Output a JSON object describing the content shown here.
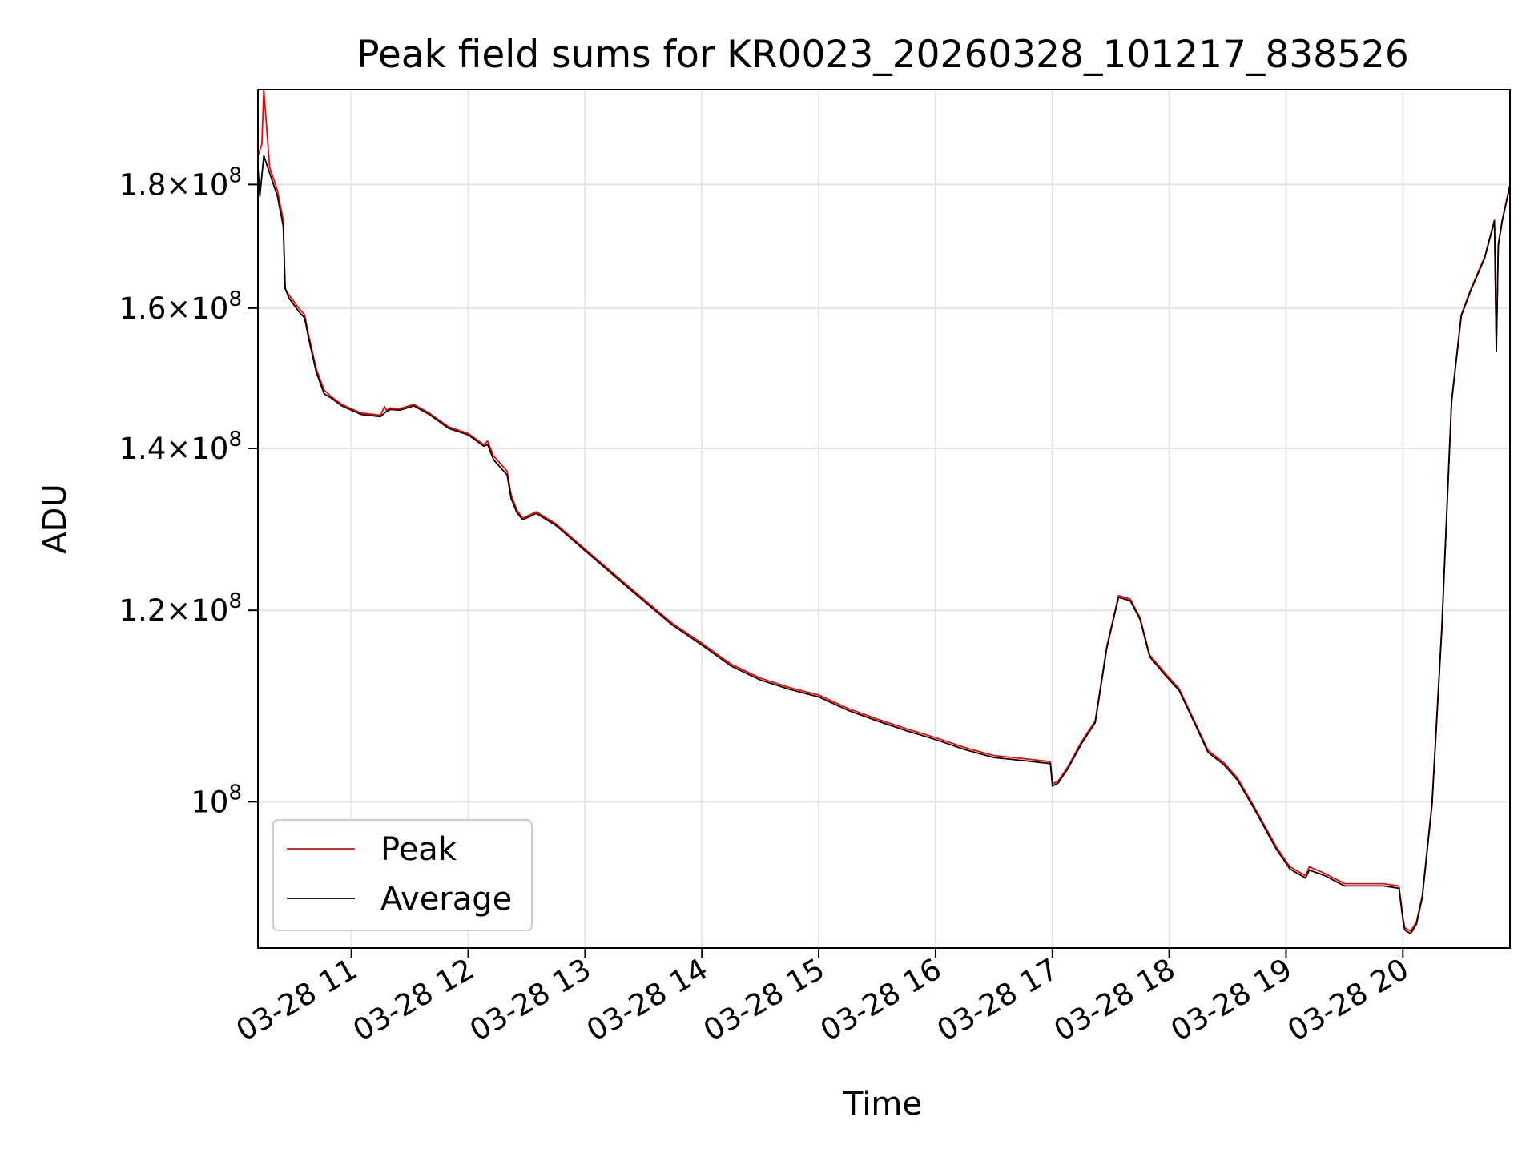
{
  "chart_data": {
    "type": "line",
    "title": "Peak field sums for KR0023_20260328_101217_838526",
    "xlabel": "Time",
    "ylabel": "ADU",
    "yscale": "log",
    "ylim": [
      87000000,
      197000000
    ],
    "xlim": [
      "2026-03-28 10:12",
      "2026-03-28 20:55"
    ],
    "grid": true,
    "legend": {
      "position": "lower left"
    },
    "x_ticks": [
      {
        "value": "2026-03-28 11:00",
        "label": "03-28 11"
      },
      {
        "value": "2026-03-28 12:00",
        "label": "03-28 12"
      },
      {
        "value": "2026-03-28 13:00",
        "label": "03-28 13"
      },
      {
        "value": "2026-03-28 14:00",
        "label": "03-28 14"
      },
      {
        "value": "2026-03-28 15:00",
        "label": "03-28 15"
      },
      {
        "value": "2026-03-28 16:00",
        "label": "03-28 16"
      },
      {
        "value": "2026-03-28 17:00",
        "label": "03-28 17"
      },
      {
        "value": "2026-03-28 18:00",
        "label": "03-28 18"
      },
      {
        "value": "2026-03-28 19:00",
        "label": "03-28 19"
      },
      {
        "value": "2026-03-28 20:00",
        "label": "03-28 20"
      }
    ],
    "y_ticks": [
      {
        "value": 100000000,
        "mantissa": "",
        "exponent": "8"
      },
      {
        "value": 120000000,
        "mantissa": "1.2",
        "exponent": "8"
      },
      {
        "value": 140000000,
        "mantissa": "1.4",
        "exponent": "8"
      },
      {
        "value": 160000000,
        "mantissa": "1.6",
        "exponent": "8"
      },
      {
        "value": 180000000,
        "mantissa": "1.8",
        "exponent": "8"
      }
    ],
    "tick_base": "10",
    "tick_times": "×",
    "series": [
      {
        "name": "Peak",
        "color": "#ff0000",
        "x": [
          "2026-03-28 10:12",
          "2026-03-28 10:14",
          "2026-03-28 10:15",
          "2026-03-28 10:18",
          "2026-03-28 10:22",
          "2026-03-28 10:25",
          "2026-03-28 10:26",
          "2026-03-28 10:28",
          "2026-03-28 10:33",
          "2026-03-28 10:36",
          "2026-03-28 10:38",
          "2026-03-28 10:42",
          "2026-03-28 10:46",
          "2026-03-28 10:50",
          "2026-03-28 10:55",
          "2026-03-28 11:05",
          "2026-03-28 11:15",
          "2026-03-28 11:17",
          "2026-03-28 11:18",
          "2026-03-28 11:20",
          "2026-03-28 11:25",
          "2026-03-28 11:32",
          "2026-03-28 11:40",
          "2026-03-28 11:50",
          "2026-03-28 12:00",
          "2026-03-28 12:08",
          "2026-03-28 12:10",
          "2026-03-28 12:13",
          "2026-03-28 12:20",
          "2026-03-28 12:22",
          "2026-03-28 12:25",
          "2026-03-28 12:28",
          "2026-03-28 12:35",
          "2026-03-28 12:45",
          "2026-03-28 13:00",
          "2026-03-28 13:15",
          "2026-03-28 13:30",
          "2026-03-28 13:45",
          "2026-03-28 14:00",
          "2026-03-28 14:15",
          "2026-03-28 14:30",
          "2026-03-28 14:45",
          "2026-03-28 15:00",
          "2026-03-28 15:15",
          "2026-03-28 15:30",
          "2026-03-28 15:45",
          "2026-03-28 16:00",
          "2026-03-28 16:15",
          "2026-03-28 16:30",
          "2026-03-28 16:45",
          "2026-03-28 16:59",
          "2026-03-28 17:00",
          "2026-03-28 17:03",
          "2026-03-28 17:08",
          "2026-03-28 17:15",
          "2026-03-28 17:22",
          "2026-03-28 17:28",
          "2026-03-28 17:34",
          "2026-03-28 17:40",
          "2026-03-28 17:45",
          "2026-03-28 17:50",
          "2026-03-28 17:58",
          "2026-03-28 18:05",
          "2026-03-28 18:12",
          "2026-03-28 18:20",
          "2026-03-28 18:28",
          "2026-03-28 18:35",
          "2026-03-28 18:45",
          "2026-03-28 18:55",
          "2026-03-28 19:02",
          "2026-03-28 19:10",
          "2026-03-28 19:12",
          "2026-03-28 19:20",
          "2026-03-28 19:30",
          "2026-03-28 19:40",
          "2026-03-28 19:50",
          "2026-03-28 19:58",
          "2026-03-28 20:00",
          "2026-03-28 20:01",
          "2026-03-28 20:04",
          "2026-03-28 20:07",
          "2026-03-28 20:10",
          "2026-03-28 20:15",
          "2026-03-28 20:20",
          "2026-03-28 20:25",
          "2026-03-28 20:30",
          "2026-03-28 20:35",
          "2026-03-28 20:42",
          "2026-03-28 20:47",
          "2026-03-28 20:48",
          "2026-03-28 20:49",
          "2026-03-28 20:51",
          "2026-03-28 20:55"
        ],
        "values": [
          185000000,
          187000000,
          197000000,
          183000000,
          179000000,
          174000000,
          163000000,
          162000000,
          160000000,
          159000000,
          156000000,
          151000000,
          148000000,
          147000000,
          146000000,
          144800000,
          144500000,
          145700000,
          145200000,
          145500000,
          145400000,
          146000000,
          144800000,
          142900000,
          142000000,
          140500000,
          141000000,
          139000000,
          137000000,
          134000000,
          132000000,
          131000000,
          131800000,
          130300000,
          127200000,
          124200000,
          121300000,
          118500000,
          116300000,
          114000000,
          112500000,
          111500000,
          110700000,
          109300000,
          108200000,
          107200000,
          106300000,
          105300000,
          104500000,
          104200000,
          103900000,
          101700000,
          102000000,
          103400000,
          105900000,
          108000000,
          116000000,
          121700000,
          121300000,
          119200000,
          115000000,
          113000000,
          111400000,
          108400000,
          105000000,
          103800000,
          102300000,
          99100000,
          95800000,
          94000000,
          93200000,
          94000000,
          93400000,
          92500000,
          92500000,
          92500000,
          92300000,
          89600000,
          88700000,
          88400000,
          89200000,
          91500000,
          100000000,
          118000000,
          146500000,
          159000000,
          163000000,
          168000000,
          174000000,
          155000000,
          170000000,
          174000000,
          180000000
        ]
      },
      {
        "name": "Average",
        "color": "#000000",
        "x": [
          "2026-03-28 10:12",
          "2026-03-28 10:13",
          "2026-03-28 10:15",
          "2026-03-28 10:18",
          "2026-03-28 10:22",
          "2026-03-28 10:25",
          "2026-03-28 10:26",
          "2026-03-28 10:28",
          "2026-03-28 10:33",
          "2026-03-28 10:36",
          "2026-03-28 10:38",
          "2026-03-28 10:42",
          "2026-03-28 10:46",
          "2026-03-28 10:50",
          "2026-03-28 10:55",
          "2026-03-28 11:05",
          "2026-03-28 11:15",
          "2026-03-28 11:17",
          "2026-03-28 11:18",
          "2026-03-28 11:20",
          "2026-03-28 11:25",
          "2026-03-28 11:32",
          "2026-03-28 11:40",
          "2026-03-28 11:50",
          "2026-03-28 12:00",
          "2026-03-28 12:08",
          "2026-03-28 12:10",
          "2026-03-28 12:13",
          "2026-03-28 12:20",
          "2026-03-28 12:22",
          "2026-03-28 12:25",
          "2026-03-28 12:28",
          "2026-03-28 12:35",
          "2026-03-28 12:45",
          "2026-03-28 13:00",
          "2026-03-28 13:15",
          "2026-03-28 13:30",
          "2026-03-28 13:45",
          "2026-03-28 14:00",
          "2026-03-28 14:15",
          "2026-03-28 14:30",
          "2026-03-28 14:45",
          "2026-03-28 15:00",
          "2026-03-28 15:15",
          "2026-03-28 15:30",
          "2026-03-28 15:45",
          "2026-03-28 16:00",
          "2026-03-28 16:15",
          "2026-03-28 16:30",
          "2026-03-28 16:45",
          "2026-03-28 16:59",
          "2026-03-28 17:00",
          "2026-03-28 17:03",
          "2026-03-28 17:08",
          "2026-03-28 17:15",
          "2026-03-28 17:22",
          "2026-03-28 17:28",
          "2026-03-28 17:34",
          "2026-03-28 17:40",
          "2026-03-28 17:45",
          "2026-03-28 17:50",
          "2026-03-28 17:58",
          "2026-03-28 18:05",
          "2026-03-28 18:12",
          "2026-03-28 18:20",
          "2026-03-28 18:28",
          "2026-03-28 18:35",
          "2026-03-28 18:45",
          "2026-03-28 18:55",
          "2026-03-28 19:02",
          "2026-03-28 19:10",
          "2026-03-28 19:12",
          "2026-03-28 19:20",
          "2026-03-28 19:30",
          "2026-03-28 19:40",
          "2026-03-28 19:50",
          "2026-03-28 19:58",
          "2026-03-28 20:00",
          "2026-03-28 20:01",
          "2026-03-28 20:04",
          "2026-03-28 20:07",
          "2026-03-28 20:10",
          "2026-03-28 20:15",
          "2026-03-28 20:20",
          "2026-03-28 20:25",
          "2026-03-28 20:30",
          "2026-03-28 20:35",
          "2026-03-28 20:42",
          "2026-03-28 20:47",
          "2026-03-28 20:48",
          "2026-03-28 20:49",
          "2026-03-28 20:51",
          "2026-03-28 20:55"
        ],
        "values": [
          183000000,
          178000000,
          185000000,
          182000000,
          178000000,
          173000000,
          163000000,
          161500000,
          159500000,
          158500000,
          155500000,
          150500000,
          147500000,
          146800000,
          145800000,
          144600000,
          144300000,
          144800000,
          145000000,
          145300000,
          145200000,
          145800000,
          144600000,
          142700000,
          141800000,
          140300000,
          140500000,
          138500000,
          136500000,
          133500000,
          131700000,
          130800000,
          131600000,
          130100000,
          127000000,
          124000000,
          121100000,
          118300000,
          116100000,
          113800000,
          112300000,
          111300000,
          110500000,
          109100000,
          108000000,
          107000000,
          106100000,
          105100000,
          104300000,
          104000000,
          103700000,
          101500000,
          101800000,
          103200000,
          105700000,
          107800000,
          115800000,
          121500000,
          121100000,
          119000000,
          114800000,
          112800000,
          111200000,
          108200000,
          104800000,
          103600000,
          102100000,
          98900000,
          95600000,
          93800000,
          93000000,
          93700000,
          93200000,
          92300000,
          92300000,
          92300000,
          92100000,
          89400000,
          88500000,
          88200000,
          89000000,
          91300000,
          99800000,
          117800000,
          146300000,
          158800000,
          162800000,
          167800000,
          173800000,
          153500000,
          169800000,
          173800000,
          179800000
        ]
      }
    ]
  }
}
